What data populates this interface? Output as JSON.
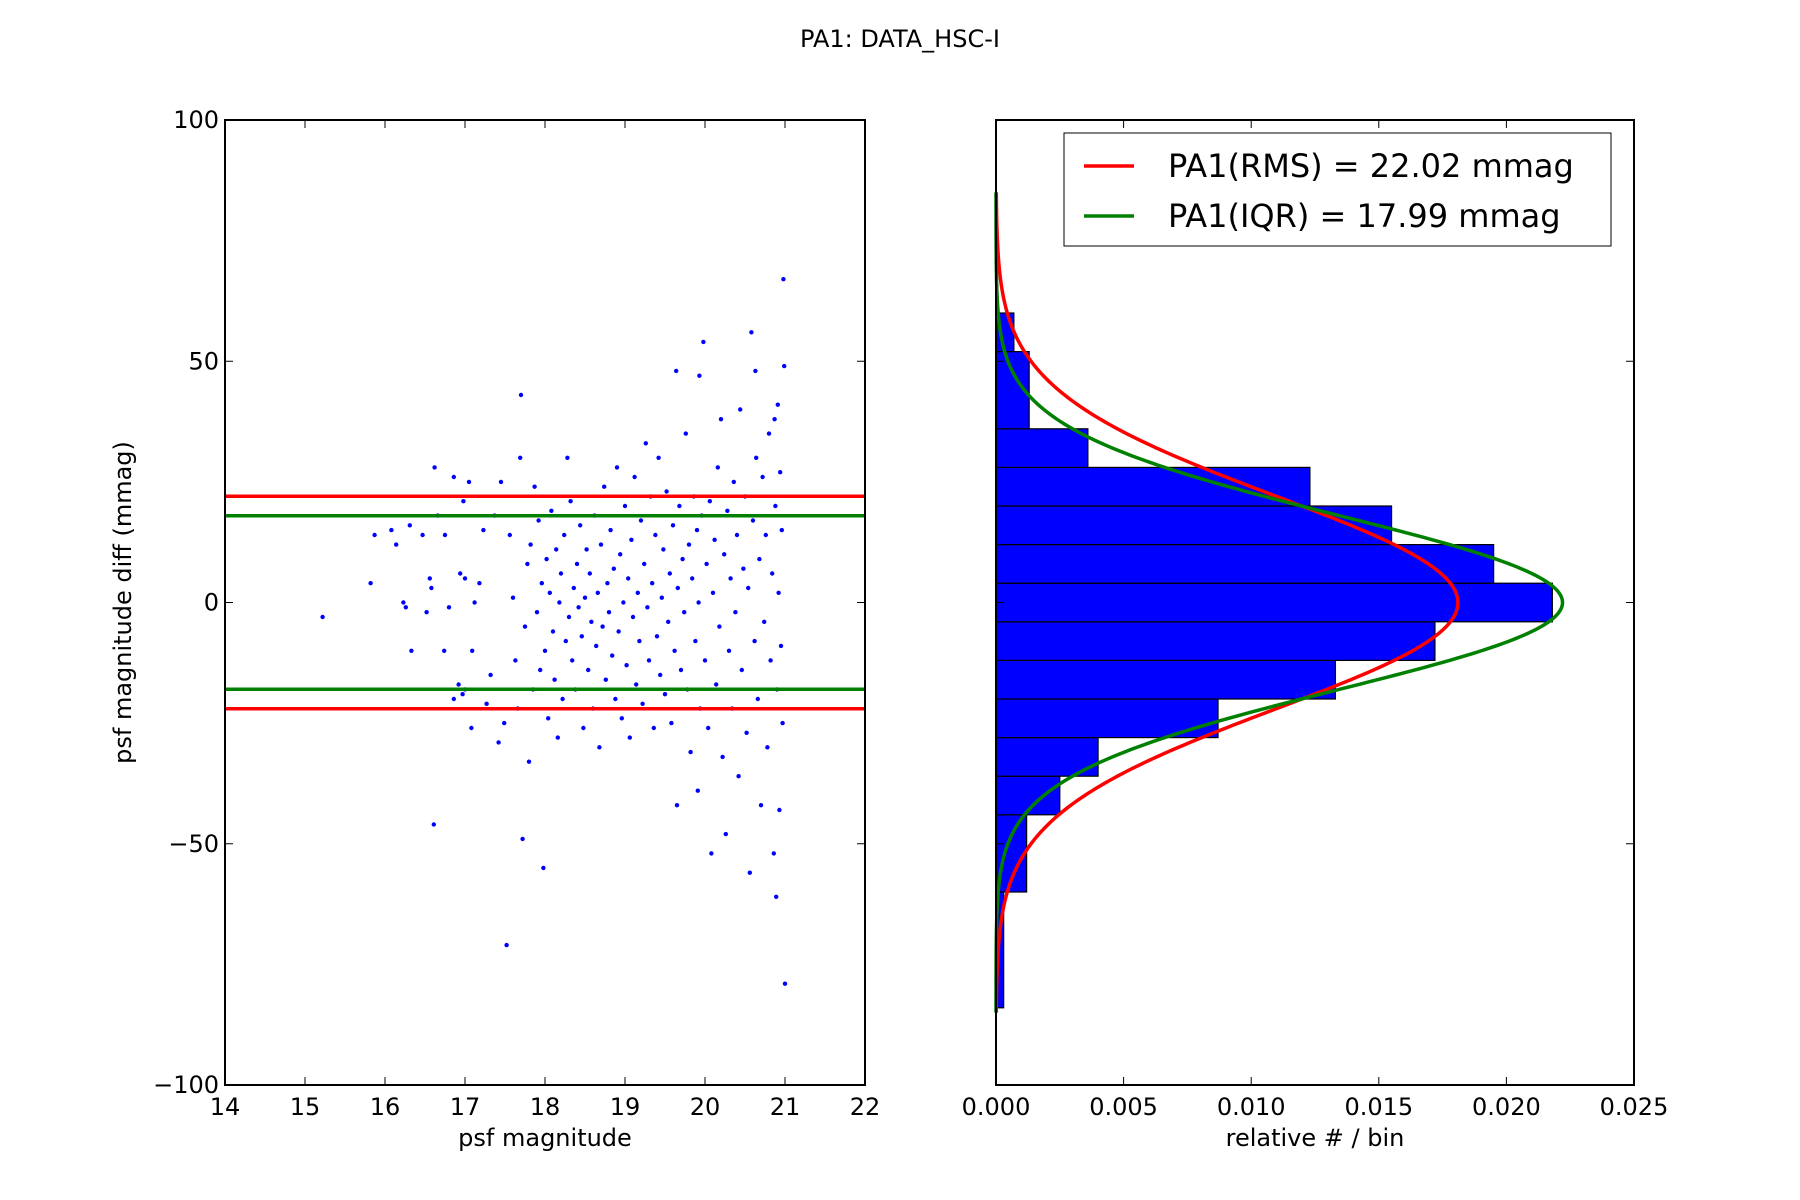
{
  "figure": {
    "suptitle": "PA1: DATA_HSC-I"
  },
  "colors": {
    "scatter": "#0000ff",
    "rms": "#ff0000",
    "iqr": "#008000",
    "hist_fill": "#0000ff",
    "hist_edge": "#000000"
  },
  "chart_data": [
    {
      "type": "scatter",
      "xlabel": "psf magnitude",
      "ylabel": "psf magnitude diff (mmag)",
      "xlim": [
        14,
        22
      ],
      "ylim": [
        -100,
        100
      ],
      "xticks": [
        14,
        15,
        16,
        17,
        18,
        19,
        20,
        21,
        22
      ],
      "yticks": [
        -100,
        -50,
        0,
        50,
        100
      ],
      "xtick_labels": [
        "14",
        "15",
        "16",
        "17",
        "18",
        "19",
        "20",
        "21",
        "22"
      ],
      "ytick_labels": [
        "−100",
        "−50",
        "0",
        "50",
        "100"
      ],
      "hlines": [
        {
          "name": "rms",
          "values": [
            22.02,
            -22.02
          ]
        },
        {
          "name": "iqr",
          "values": [
            17.99,
            -17.99
          ]
        }
      ],
      "points": [
        [
          15.22,
          -3
        ],
        [
          15.82,
          4
        ],
        [
          15.87,
          14
        ],
        [
          16.08,
          15
        ],
        [
          16.14,
          12
        ],
        [
          16.23,
          0
        ],
        [
          16.26,
          -1
        ],
        [
          16.31,
          16
        ],
        [
          16.33,
          -10
        ],
        [
          16.47,
          14
        ],
        [
          16.52,
          -2
        ],
        [
          16.56,
          5
        ],
        [
          16.58,
          3
        ],
        [
          16.61,
          -46
        ],
        [
          16.62,
          28
        ],
        [
          16.66,
          18
        ],
        [
          16.74,
          -10
        ],
        [
          16.75,
          14
        ],
        [
          16.8,
          -1
        ],
        [
          16.86,
          -20
        ],
        [
          16.86,
          26
        ],
        [
          16.92,
          -17
        ],
        [
          16.94,
          6
        ],
        [
          16.97,
          -19
        ],
        [
          16.98,
          21
        ],
        [
          17.0,
          -18
        ],
        [
          17.0,
          5
        ],
        [
          17.05,
          25
        ],
        [
          17.08,
          -26
        ],
        [
          17.09,
          -10
        ],
        [
          17.12,
          0
        ],
        [
          17.18,
          4
        ],
        [
          17.23,
          15
        ],
        [
          17.27,
          -21
        ],
        [
          17.32,
          -15
        ],
        [
          17.37,
          18
        ],
        [
          17.42,
          -29
        ],
        [
          17.45,
          25
        ],
        [
          17.49,
          -25
        ],
        [
          17.52,
          -71
        ],
        [
          17.56,
          14
        ],
        [
          17.6,
          1
        ],
        [
          17.63,
          -12
        ],
        [
          17.66,
          -22
        ],
        [
          17.69,
          30
        ],
        [
          17.7,
          43
        ],
        [
          17.72,
          -49
        ],
        [
          17.75,
          -5
        ],
        [
          17.78,
          8
        ],
        [
          17.8,
          -33
        ],
        [
          17.82,
          12
        ],
        [
          17.85,
          -18
        ],
        [
          17.87,
          24
        ],
        [
          17.9,
          -2
        ],
        [
          17.92,
          17
        ],
        [
          17.94,
          -14
        ],
        [
          17.96,
          4
        ],
        [
          17.98,
          -55
        ],
        [
          18.0,
          -10
        ],
        [
          18.02,
          9
        ],
        [
          18.04,
          -24
        ],
        [
          18.06,
          2
        ],
        [
          18.08,
          19
        ],
        [
          18.1,
          -6
        ],
        [
          18.12,
          -16
        ],
        [
          18.14,
          11
        ],
        [
          18.16,
          -28
        ],
        [
          18.18,
          0
        ],
        [
          18.2,
          6
        ],
        [
          18.22,
          -20
        ],
        [
          18.24,
          14
        ],
        [
          18.26,
          -8
        ],
        [
          18.28,
          30
        ],
        [
          18.3,
          -3
        ],
        [
          18.32,
          21
        ],
        [
          18.34,
          -12
        ],
        [
          18.36,
          3
        ],
        [
          18.38,
          -18
        ],
        [
          18.4,
          8
        ],
        [
          18.42,
          -1
        ],
        [
          18.44,
          16
        ],
        [
          18.46,
          -7
        ],
        [
          18.48,
          -26
        ],
        [
          18.5,
          1
        ],
        [
          18.52,
          11
        ],
        [
          18.54,
          -14
        ],
        [
          18.56,
          6
        ],
        [
          18.58,
          -4
        ],
        [
          18.6,
          -22
        ],
        [
          18.62,
          18
        ],
        [
          18.64,
          -9
        ],
        [
          18.66,
          2
        ],
        [
          18.68,
          -30
        ],
        [
          18.7,
          12
        ],
        [
          18.72,
          -5
        ],
        [
          18.74,
          24
        ],
        [
          18.76,
          -16
        ],
        [
          18.78,
          4
        ],
        [
          18.8,
          -2
        ],
        [
          18.82,
          15
        ],
        [
          18.84,
          -11
        ],
        [
          18.86,
          7
        ],
        [
          18.88,
          -20
        ],
        [
          18.9,
          28
        ],
        [
          18.92,
          -6
        ],
        [
          18.94,
          10
        ],
        [
          18.96,
          -24
        ],
        [
          18.98,
          0
        ],
        [
          19.0,
          20
        ],
        [
          19.02,
          -13
        ],
        [
          19.04,
          5
        ],
        [
          19.06,
          -28
        ],
        [
          19.08,
          13
        ],
        [
          19.1,
          -3
        ],
        [
          19.12,
          26
        ],
        [
          19.14,
          -17
        ],
        [
          19.16,
          2
        ],
        [
          19.18,
          -8
        ],
        [
          19.2,
          17
        ],
        [
          19.22,
          -21
        ],
        [
          19.24,
          8
        ],
        [
          19.26,
          33
        ],
        [
          19.28,
          -1
        ],
        [
          19.3,
          -12
        ],
        [
          19.32,
          22
        ],
        [
          19.34,
          4
        ],
        [
          19.36,
          -26
        ],
        [
          19.38,
          14
        ],
        [
          19.4,
          -7
        ],
        [
          19.42,
          30
        ],
        [
          19.44,
          -15
        ],
        [
          19.46,
          1
        ],
        [
          19.48,
          11
        ],
        [
          19.5,
          -19
        ],
        [
          19.52,
          23
        ],
        [
          19.54,
          -4
        ],
        [
          19.56,
          6
        ],
        [
          19.58,
          -25
        ],
        [
          19.6,
          16
        ],
        [
          19.62,
          -10
        ],
        [
          19.64,
          48
        ],
        [
          19.65,
          -42
        ],
        [
          19.66,
          3
        ],
        [
          19.68,
          20
        ],
        [
          19.7,
          -14
        ],
        [
          19.72,
          9
        ],
        [
          19.74,
          -2
        ],
        [
          19.76,
          35
        ],
        [
          19.78,
          -18
        ],
        [
          19.8,
          12
        ],
        [
          19.82,
          -31
        ],
        [
          19.84,
          5
        ],
        [
          19.86,
          22
        ],
        [
          19.88,
          -8
        ],
        [
          19.9,
          15
        ],
        [
          19.91,
          -39
        ],
        [
          19.92,
          0
        ],
        [
          19.93,
          47
        ],
        [
          19.94,
          -22
        ],
        [
          19.96,
          18
        ],
        [
          19.98,
          54
        ],
        [
          20.0,
          -12
        ],
        [
          20.02,
          8
        ],
        [
          20.04,
          -26
        ],
        [
          20.06,
          21
        ],
        [
          20.08,
          -52
        ],
        [
          20.1,
          2
        ],
        [
          20.12,
          13
        ],
        [
          20.14,
          -17
        ],
        [
          20.16,
          28
        ],
        [
          20.18,
          -5
        ],
        [
          20.2,
          38
        ],
        [
          20.22,
          -32
        ],
        [
          20.24,
          10
        ],
        [
          20.26,
          -48
        ],
        [
          20.28,
          19
        ],
        [
          20.3,
          -10
        ],
        [
          20.32,
          5
        ],
        [
          20.34,
          -22
        ],
        [
          20.36,
          25
        ],
        [
          20.38,
          -2
        ],
        [
          20.4,
          14
        ],
        [
          20.42,
          -36
        ],
        [
          20.44,
          40
        ],
        [
          20.46,
          -14
        ],
        [
          20.48,
          7
        ],
        [
          20.5,
          22
        ],
        [
          20.52,
          -27
        ],
        [
          20.54,
          3
        ],
        [
          20.56,
          -56
        ],
        [
          20.58,
          56
        ],
        [
          20.6,
          17
        ],
        [
          20.62,
          -8
        ],
        [
          20.63,
          48
        ],
        [
          20.64,
          30
        ],
        [
          20.66,
          -20
        ],
        [
          20.68,
          9
        ],
        [
          20.7,
          -42
        ],
        [
          20.72,
          26
        ],
        [
          20.74,
          -4
        ],
        [
          20.76,
          14
        ],
        [
          20.78,
          -30
        ],
        [
          20.8,
          35
        ],
        [
          20.82,
          -12
        ],
        [
          20.84,
          6
        ],
        [
          20.86,
          -52
        ],
        [
          20.87,
          38
        ],
        [
          20.88,
          20
        ],
        [
          20.89,
          -61
        ],
        [
          20.9,
          -18
        ],
        [
          20.91,
          41
        ],
        [
          20.92,
          2
        ],
        [
          20.93,
          -43
        ],
        [
          20.94,
          27
        ],
        [
          20.95,
          -9
        ],
        [
          20.96,
          15
        ],
        [
          20.97,
          -25
        ],
        [
          20.98,
          67
        ],
        [
          20.99,
          49
        ],
        [
          21.0,
          -79
        ]
      ]
    },
    {
      "type": "histogram",
      "xlabel": "relative # / bin",
      "xlim": [
        0.0,
        0.025
      ],
      "ylim": [
        -100,
        100
      ],
      "xticks": [
        0.0,
        0.005,
        0.01,
        0.015,
        0.02,
        0.025
      ],
      "xtick_labels": [
        "0.000",
        "0.005",
        "0.010",
        "0.015",
        "0.020",
        "0.025"
      ],
      "orientation": "horizontal",
      "bins": [
        {
          "y0": -84,
          "y1": -60,
          "value": 0.0003
        },
        {
          "y0": -60,
          "y1": -44,
          "value": 0.0012
        },
        {
          "y0": -44,
          "y1": -36,
          "value": 0.0025
        },
        {
          "y0": -36,
          "y1": -28,
          "value": 0.004
        },
        {
          "y0": -28,
          "y1": -20,
          "value": 0.0087
        },
        {
          "y0": -20,
          "y1": -12,
          "value": 0.0133
        },
        {
          "y0": -12,
          "y1": -4,
          "value": 0.0172
        },
        {
          "y0": -4,
          "y1": 4,
          "value": 0.0218
        },
        {
          "y0": 4,
          "y1": 12,
          "value": 0.0195
        },
        {
          "y0": 12,
          "y1": 20,
          "value": 0.0155
        },
        {
          "y0": 20,
          "y1": 28,
          "value": 0.0123
        },
        {
          "y0": 28,
          "y1": 36,
          "value": 0.0036
        },
        {
          "y0": 36,
          "y1": 52,
          "value": 0.0013
        },
        {
          "y0": 52,
          "y1": 60,
          "value": 0.0007
        }
      ],
      "curves": [
        {
          "name": "PA1(RMS) = 22.02 mmag",
          "color_key": "rms",
          "sigma": 22.02,
          "peak": 0.0181
        },
        {
          "name": "PA1(IQR) = 17.99 mmag",
          "color_key": "iqr",
          "sigma": 17.99,
          "peak": 0.0222
        }
      ],
      "legend_placement": "upper-right"
    }
  ]
}
